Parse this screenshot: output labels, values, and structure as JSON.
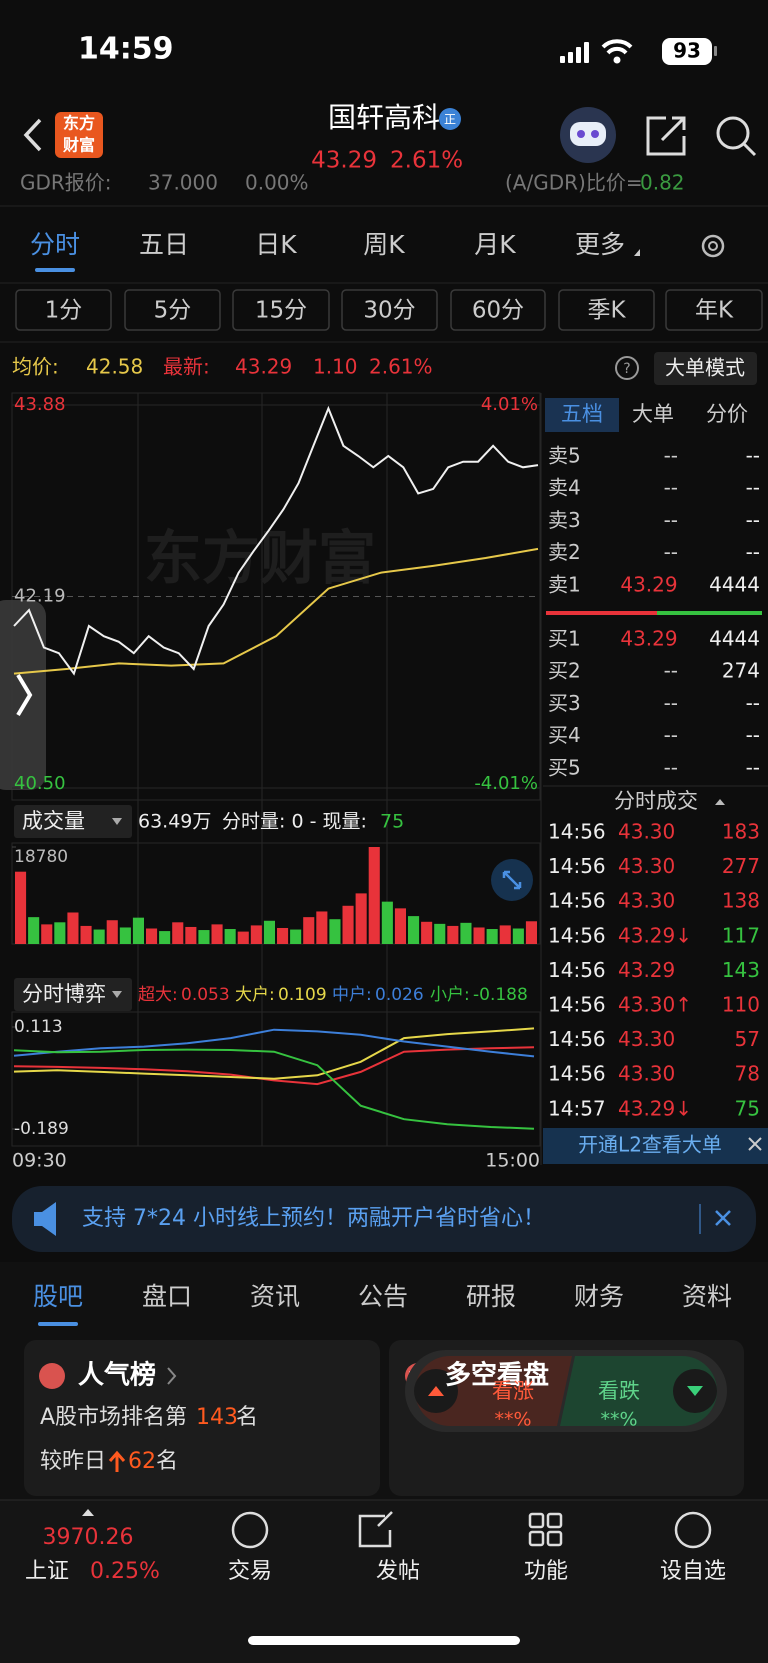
{
  "status_bar": {
    "time": "14:59",
    "battery": "93"
  },
  "header": {
    "logo": [
      "东方",
      "财富"
    ],
    "title": "国轩高科",
    "badge": "正",
    "price": "43.29",
    "change_pct": "2.61%",
    "gdr_label": "GDR报价:",
    "gdr_price": "37.000",
    "gdr_pct": "0.00%",
    "ratio_label": "(A/GDR)比价=",
    "ratio": "0.82"
  },
  "chart_tabs": [
    "分时",
    "五日",
    "日K",
    "周K",
    "月K",
    "更多"
  ],
  "period_buttons": [
    "1分",
    "5分",
    "15分",
    "30分",
    "60分",
    "季K",
    "年K"
  ],
  "quote_line": {
    "avg_label": "均价:",
    "avg": "42.58",
    "last_label": "最新:",
    "last": "43.29",
    "change": "1.10",
    "change_pct": "2.61%",
    "mode": "大单模式"
  },
  "price_chart": {
    "watermark": "东方财富",
    "ylim": [
      40.5,
      43.88
    ],
    "yticks": [
      43.88,
      42.19,
      {
        "value": 40.5,
        "label": "40.50"
      }
    ],
    "pct_labels": [
      "4.01%",
      "-4.01%"
    ],
    "price_color": "#f0f0f0",
    "avg_color": "#e6c84a",
    "price": [
      41.93,
      42.07,
      41.74,
      41.69,
      41.51,
      41.93,
      41.84,
      41.79,
      41.69,
      41.84,
      41.74,
      41.69,
      41.55,
      41.93,
      42.12,
      42.4,
      42.59,
      42.77,
      42.96,
      43.19,
      43.52,
      43.85,
      43.52,
      43.43,
      43.33,
      43.43,
      43.33,
      43.1,
      43.14,
      43.33,
      43.38,
      43.38,
      43.52,
      43.38,
      43.33,
      43.35
    ],
    "avg": [
      41.51,
      41.55,
      41.6,
      41.58,
      41.6,
      41.84,
      42.26,
      42.4,
      42.46,
      42.53,
      42.61
    ]
  },
  "volume": {
    "label": "成交量",
    "total": "63.49万",
    "detail": "分时量: 0 - 现量:",
    "current": "75",
    "ylim": [
      0,
      18780
    ],
    "yticks": [
      18780
    ],
    "values": [
      14000,
      5200,
      3800,
      4200,
      6100,
      3500,
      2800,
      4600,
      3200,
      5100,
      3000,
      2500,
      4200,
      3300,
      2700,
      3800,
      2900,
      2400,
      3600,
      4500,
      3100,
      2800,
      5200,
      6300,
      4800,
      7400,
      9800,
      18780,
      8200,
      6900,
      5400,
      4300,
      3900,
      3500,
      4100,
      3200,
      2900,
      3600,
      3000,
      4400
    ],
    "colors": [
      "#e8333a",
      "#36c240",
      "#e8333a",
      "#36c240",
      "#e8333a",
      "#e8333a",
      "#36c240",
      "#e8333a",
      "#36c240",
      "#36c240",
      "#e8333a",
      "#36c240",
      "#e8333a",
      "#e8333a",
      "#36c240",
      "#e8333a",
      "#36c240",
      "#e8333a",
      "#e8333a",
      "#36c240",
      "#e8333a",
      "#36c240",
      "#e8333a",
      "#e8333a",
      "#36c240",
      "#e8333a",
      "#e8333a",
      "#e8333a",
      "#36c240",
      "#e8333a",
      "#36c240",
      "#e8333a",
      "#36c240",
      "#e8333a",
      "#36c240",
      "#e8333a",
      "#36c240",
      "#e8333a",
      "#36c240",
      "#e8333a"
    ]
  },
  "flow": {
    "label": "分时博弈",
    "ylim": [
      -0.189,
      0.113
    ],
    "yticks": [
      0.113,
      -0.189
    ],
    "x_labels": [
      "09:30",
      "15:00"
    ],
    "series": [
      {
        "name": "超大:",
        "value_label": "0.053",
        "color": "#e8333a",
        "values": [
          -0.003,
          -0.005,
          -0.008,
          -0.012,
          -0.018,
          -0.028,
          -0.045,
          -0.056,
          -0.02,
          0.04,
          0.046,
          0.05,
          0.053
        ]
      },
      {
        "name": "大户:",
        "value_label": "0.109",
        "color": "#e6d84a",
        "values": [
          -0.019,
          -0.015,
          -0.02,
          -0.025,
          -0.03,
          -0.035,
          -0.04,
          -0.03,
          0.01,
          0.08,
          0.092,
          0.1,
          0.109
        ]
      },
      {
        "name": "中户:",
        "value_label": "0.026",
        "color": "#3d7fd9",
        "values": [
          0.028,
          0.04,
          0.05,
          0.055,
          0.065,
          0.08,
          0.105,
          0.1,
          0.09,
          0.07,
          0.055,
          0.04,
          0.026
        ]
      },
      {
        "name": "小户:",
        "value_label": "-0.188",
        "color": "#36c240",
        "values": [
          0.044,
          0.038,
          0.04,
          0.045,
          0.046,
          0.045,
          0.04,
          0.0,
          -0.12,
          -0.16,
          -0.175,
          -0.183,
          -0.188
        ]
      }
    ]
  },
  "order_book": {
    "tabs": [
      "五档",
      "大单",
      "分价"
    ],
    "asks": [
      {
        "label": "卖5",
        "price": "--",
        "vol": "--"
      },
      {
        "label": "卖4",
        "price": "--",
        "vol": "--"
      },
      {
        "label": "卖3",
        "price": "--",
        "vol": "--"
      },
      {
        "label": "卖2",
        "price": "--",
        "vol": "--"
      },
      {
        "label": "卖1",
        "price": "43.29",
        "vol": "4444"
      }
    ],
    "bids": [
      {
        "label": "买1",
        "price": "43.29",
        "vol": "4444"
      },
      {
        "label": "买2",
        "price": "--",
        "vol": "274"
      },
      {
        "label": "买3",
        "price": "--",
        "vol": "--"
      },
      {
        "label": "买4",
        "price": "--",
        "vol": "--"
      },
      {
        "label": "买5",
        "price": "--",
        "vol": "--"
      }
    ],
    "trades_title": "分时成交",
    "trades": [
      {
        "time": "14:56",
        "price": "43.30",
        "vol": "183",
        "color": "#e8333a"
      },
      {
        "time": "14:56",
        "price": "43.30",
        "vol": "277",
        "color": "#e8333a"
      },
      {
        "time": "14:56",
        "price": "43.30",
        "vol": "138",
        "color": "#e8333a"
      },
      {
        "time": "14:56",
        "price": "43.29↓",
        "vol": "117",
        "color": "#36c240"
      },
      {
        "time": "14:56",
        "price": "43.29",
        "vol": "143",
        "color": "#36c240"
      },
      {
        "time": "14:56",
        "price": "43.30↑",
        "vol": "110",
        "color": "#e8333a"
      },
      {
        "time": "14:56",
        "price": "43.30",
        "vol": "57",
        "color": "#e8333a"
      },
      {
        "time": "14:56",
        "price": "43.30",
        "vol": "78",
        "color": "#e8333a"
      },
      {
        "time": "14:57",
        "price": "43.29↓",
        "vol": "75",
        "color": "#36c240"
      }
    ],
    "l2": "开通L2查看大单"
  },
  "banner": "支持 7*24 小时线上预约！两融开户省时省心！",
  "info_tabs": [
    "股吧",
    "盘口",
    "资讯",
    "公告",
    "研报",
    "财务",
    "资料"
  ],
  "cards": {
    "popularity": {
      "title": "人气榜",
      "line1_prefix": "A股市场排名第",
      "rank": "143",
      "line1_suffix": "名",
      "line2_prefix": "较昨日",
      "change": "62",
      "line2_suffix": "名"
    },
    "sentiment": {
      "title": "多空看盘",
      "up": "看涨",
      "up_value": "**%",
      "down": "看跌",
      "down_value": "**%"
    }
  },
  "bottom_nav": {
    "index_value": "3970.26",
    "index_name": "上证",
    "index_pct": "0.25%",
    "items": [
      "交易",
      "发帖",
      "功能",
      "设自选"
    ]
  }
}
